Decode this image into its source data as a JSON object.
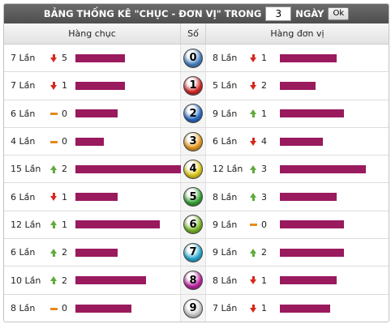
{
  "header": {
    "title": "BẢNG THỐNG KÊ \"CHỤC - ĐƠN VỊ\" TRONG",
    "days_value": "3",
    "days_label": "NGÀY",
    "ok_label": "Ok"
  },
  "columns": {
    "left": "Hàng chục",
    "mid": "Số",
    "right": "Hàng đơn vị"
  },
  "max_count": 15,
  "rows": [
    {
      "digit": "0",
      "ball_color": "#4a86c8",
      "left": {
        "count": 7,
        "count_label": "7 Lần",
        "trend": "down",
        "delta": "5"
      },
      "right": {
        "count": 8,
        "count_label": "8 Lần",
        "trend": "down",
        "delta": "1"
      }
    },
    {
      "digit": "1",
      "ball_color": "#d62b2b",
      "left": {
        "count": 7,
        "count_label": "7 Lần",
        "trend": "down",
        "delta": "1"
      },
      "right": {
        "count": 5,
        "count_label": "5 Lần",
        "trend": "down",
        "delta": "2"
      }
    },
    {
      "digit": "2",
      "ball_color": "#2a6fc9",
      "left": {
        "count": 6,
        "count_label": "6 Lần",
        "trend": "flat",
        "delta": "0"
      },
      "right": {
        "count": 9,
        "count_label": "9 Lần",
        "trend": "up",
        "delta": "1"
      }
    },
    {
      "digit": "3",
      "ball_color": "#f0a020",
      "left": {
        "count": 4,
        "count_label": "4 Lần",
        "trend": "flat",
        "delta": "0"
      },
      "right": {
        "count": 6,
        "count_label": "6 Lần",
        "trend": "down",
        "delta": "4"
      }
    },
    {
      "digit": "4",
      "ball_color": "#e6d21e",
      "left": {
        "count": 15,
        "count_label": "15 Lần",
        "trend": "up",
        "delta": "2"
      },
      "right": {
        "count": 12,
        "count_label": "12 Lần",
        "trend": "up",
        "delta": "3"
      }
    },
    {
      "digit": "5",
      "ball_color": "#3aaa3a",
      "left": {
        "count": 6,
        "count_label": "6 Lần",
        "trend": "down",
        "delta": "1"
      },
      "right": {
        "count": 8,
        "count_label": "8 Lần",
        "trend": "up",
        "delta": "3"
      }
    },
    {
      "digit": "6",
      "ball_color": "#7dbe2a",
      "left": {
        "count": 12,
        "count_label": "12 Lần",
        "trend": "up",
        "delta": "1"
      },
      "right": {
        "count": 9,
        "count_label": "9 Lần",
        "trend": "flat",
        "delta": "0"
      }
    },
    {
      "digit": "7",
      "ball_color": "#2ab0d8",
      "left": {
        "count": 6,
        "count_label": "6 Lần",
        "trend": "up",
        "delta": "2"
      },
      "right": {
        "count": 9,
        "count_label": "9 Lần",
        "trend": "up",
        "delta": "2"
      }
    },
    {
      "digit": "8",
      "ball_color": "#c428a8",
      "left": {
        "count": 10,
        "count_label": "10 Lần",
        "trend": "up",
        "delta": "2"
      },
      "right": {
        "count": 8,
        "count_label": "8 Lần",
        "trend": "down",
        "delta": "1"
      }
    },
    {
      "digit": "9",
      "ball_color": "#d8d8d8",
      "left": {
        "count": 8,
        "count_label": "8 Lần",
        "trend": "flat",
        "delta": "0"
      },
      "right": {
        "count": 7,
        "count_label": "7 Lần",
        "trend": "down",
        "delta": "1"
      }
    }
  ]
}
